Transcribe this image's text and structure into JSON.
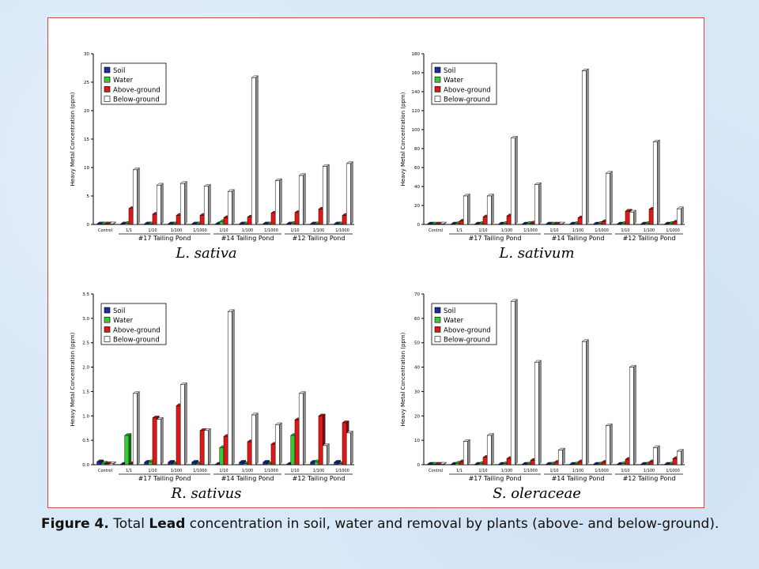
{
  "caption": {
    "label": "Figure 4.",
    "text_before": "Total",
    "bold_word": "Lead",
    "text_after": "concentration in soil, water and removal by plants (above- and below-ground)."
  },
  "colors": {
    "Soil": "#1f2aa8",
    "Water": "#33cc33",
    "Above-ground": "#e01818",
    "Below-ground": "#ffffff"
  },
  "chart_data": [
    {
      "type": "bar",
      "species": "L. sativa",
      "ylabel": "Heavy Metal Concentration (ppm)",
      "ylim": [
        0,
        30
      ],
      "yticks": [
        "0",
        "5",
        "10",
        "15",
        "20",
        "25",
        "30"
      ],
      "categories": [
        "Control",
        "1/1",
        "1/10",
        "1/100",
        "1/1000",
        "1/10",
        "1/100",
        "1/1000",
        "1/10",
        "1/100",
        "1/1000"
      ],
      "groups": [
        "#17 Tailing Pond",
        "#14 Tailing Pond",
        "#12 Tailing Pond"
      ],
      "legend": [
        "Soil",
        "Water",
        "Above-ground",
        "Below-ground"
      ],
      "legend_position": "top-left",
      "series": [
        {
          "name": "Soil",
          "values": [
            0.1,
            0.1,
            0.1,
            0.1,
            0.1,
            0.1,
            0.1,
            0.1,
            0.1,
            0.1,
            0.1
          ]
        },
        {
          "name": "Water",
          "values": [
            0.1,
            0.2,
            0.1,
            0.1,
            0.1,
            0.5,
            0.1,
            0.1,
            0.2,
            0.1,
            0.1
          ]
        },
        {
          "name": "Above-ground",
          "values": [
            0.1,
            2.8,
            1.8,
            1.6,
            1.6,
            1.2,
            1.3,
            2.0,
            2.1,
            2.7,
            1.6
          ]
        },
        {
          "name": "Below-ground",
          "values": [
            0.1,
            9.6,
            6.9,
            7.2,
            6.7,
            5.8,
            25.8,
            7.7,
            8.6,
            10.2,
            10.7
          ]
        }
      ]
    },
    {
      "type": "bar",
      "species": "L. sativum",
      "ylabel": "Heavy Metal Concentration (ppm)",
      "ylim": [
        0,
        180
      ],
      "yticks": [
        "0",
        "20",
        "40",
        "60",
        "80",
        "100",
        "120",
        "140",
        "160",
        "180"
      ],
      "categories": [
        "Control",
        "1/1",
        "1/10",
        "1/100",
        "1/1000",
        "1/10",
        "1/100",
        "1/1000",
        "1/10",
        "1/100",
        "1/1000"
      ],
      "groups": [
        "#17 Tailing Pond",
        "#14 Tailing Pond",
        "#12 Tailing Pond"
      ],
      "legend": [
        "Soil",
        "Water",
        "Above-ground",
        "Below-ground"
      ],
      "legend_position": "top-left",
      "series": [
        {
          "name": "Soil",
          "values": [
            0.5,
            0.5,
            0.5,
            0.5,
            0.5,
            0.5,
            0.5,
            0.5,
            0.5,
            0.5,
            0.5
          ]
        },
        {
          "name": "Water",
          "values": [
            0.5,
            1.0,
            1.0,
            1.0,
            1.0,
            0.5,
            1.0,
            1.0,
            1.0,
            1.0,
            1.0
          ]
        },
        {
          "name": "Above-ground",
          "values": [
            0.5,
            3.5,
            8.0,
            9.0,
            1.5,
            0.5,
            7.0,
            3.0,
            14.0,
            16.0,
            2.5
          ]
        },
        {
          "name": "Below-ground",
          "values": [
            0.5,
            30.0,
            30.0,
            91.0,
            42.0,
            0.5,
            162.0,
            54.0,
            13.0,
            87.0,
            16.5
          ]
        }
      ]
    },
    {
      "type": "bar",
      "species": "R. sativus",
      "ylabel": "Heavy Metal Concentration (ppm)",
      "ylim": [
        0,
        3.5
      ],
      "yticks": [
        "0.0",
        "0.5",
        "1.0",
        "1.5",
        "2.0",
        "2.5",
        "3.0",
        "3.5"
      ],
      "categories": [
        "Control",
        "1/1",
        "1/10",
        "1/100",
        "1/1000",
        "1/10",
        "1/100",
        "1/1000",
        "1/10",
        "1/100",
        "1/1000"
      ],
      "groups": [
        "#17 Tailing Pond",
        "#14 Tailing Pond",
        "#12 Tailing Pond"
      ],
      "legend": [
        "Soil",
        "Water",
        "Above-ground",
        "Below-ground"
      ],
      "legend_position": "top-left",
      "series": [
        {
          "name": "Soil",
          "values": [
            0.06,
            0.0,
            0.05,
            0.05,
            0.05,
            0.0,
            0.05,
            0.05,
            0.0,
            0.05,
            0.05
          ]
        },
        {
          "name": "Water",
          "values": [
            0.03,
            0.6,
            0.06,
            0.02,
            0.02,
            0.35,
            0.02,
            0.02,
            0.6,
            0.06,
            0.02
          ]
        },
        {
          "name": "Above-ground",
          "values": [
            0.02,
            0.02,
            0.96,
            1.21,
            0.7,
            0.58,
            0.47,
            0.42,
            0.92,
            1.0,
            0.86
          ]
        },
        {
          "name": "Below-ground",
          "values": [
            0.02,
            1.46,
            0.93,
            1.64,
            0.7,
            3.14,
            1.02,
            0.82,
            1.46,
            0.39,
            0.65
          ]
        }
      ]
    },
    {
      "type": "bar",
      "species": "S. oleraceae",
      "ylabel": "Heavy Metal Concentration (ppm)",
      "ylim": [
        0,
        70
      ],
      "yticks": [
        "0",
        "10",
        "20",
        "30",
        "40",
        "50",
        "60",
        "70"
      ],
      "categories": [
        "Control",
        "1/1",
        "1/10",
        "1/100",
        "1/1000",
        "1/10",
        "1/100",
        "1/1000",
        "1/10",
        "1/100",
        "1/1000"
      ],
      "groups": [
        "#17 Tailing Pond",
        "#14 Tailing Pond",
        "#12 Tailing Pond"
      ],
      "legend": [
        "Soil",
        "Water",
        "Above-ground",
        "Below-ground"
      ],
      "legend_position": "top-left",
      "series": [
        {
          "name": "Soil",
          "values": [
            0.2,
            0.2,
            0.2,
            0.2,
            0.2,
            0.2,
            0.2,
            0.2,
            0.2,
            0.2,
            0.2
          ]
        },
        {
          "name": "Water",
          "values": [
            0.2,
            0.6,
            0.5,
            0.4,
            0.3,
            0.3,
            0.3,
            0.3,
            0.5,
            0.3,
            0.3
          ]
        },
        {
          "name": "Above-ground",
          "values": [
            0.2,
            1.2,
            3.0,
            2.5,
            1.8,
            1.0,
            1.2,
            1.0,
            2.2,
            1.2,
            2.5
          ]
        },
        {
          "name": "Below-ground",
          "values": [
            0.2,
            9.5,
            12.0,
            67.0,
            42.0,
            6.0,
            50.5,
            16.0,
            40.0,
            7.0,
            5.5
          ]
        }
      ]
    }
  ]
}
